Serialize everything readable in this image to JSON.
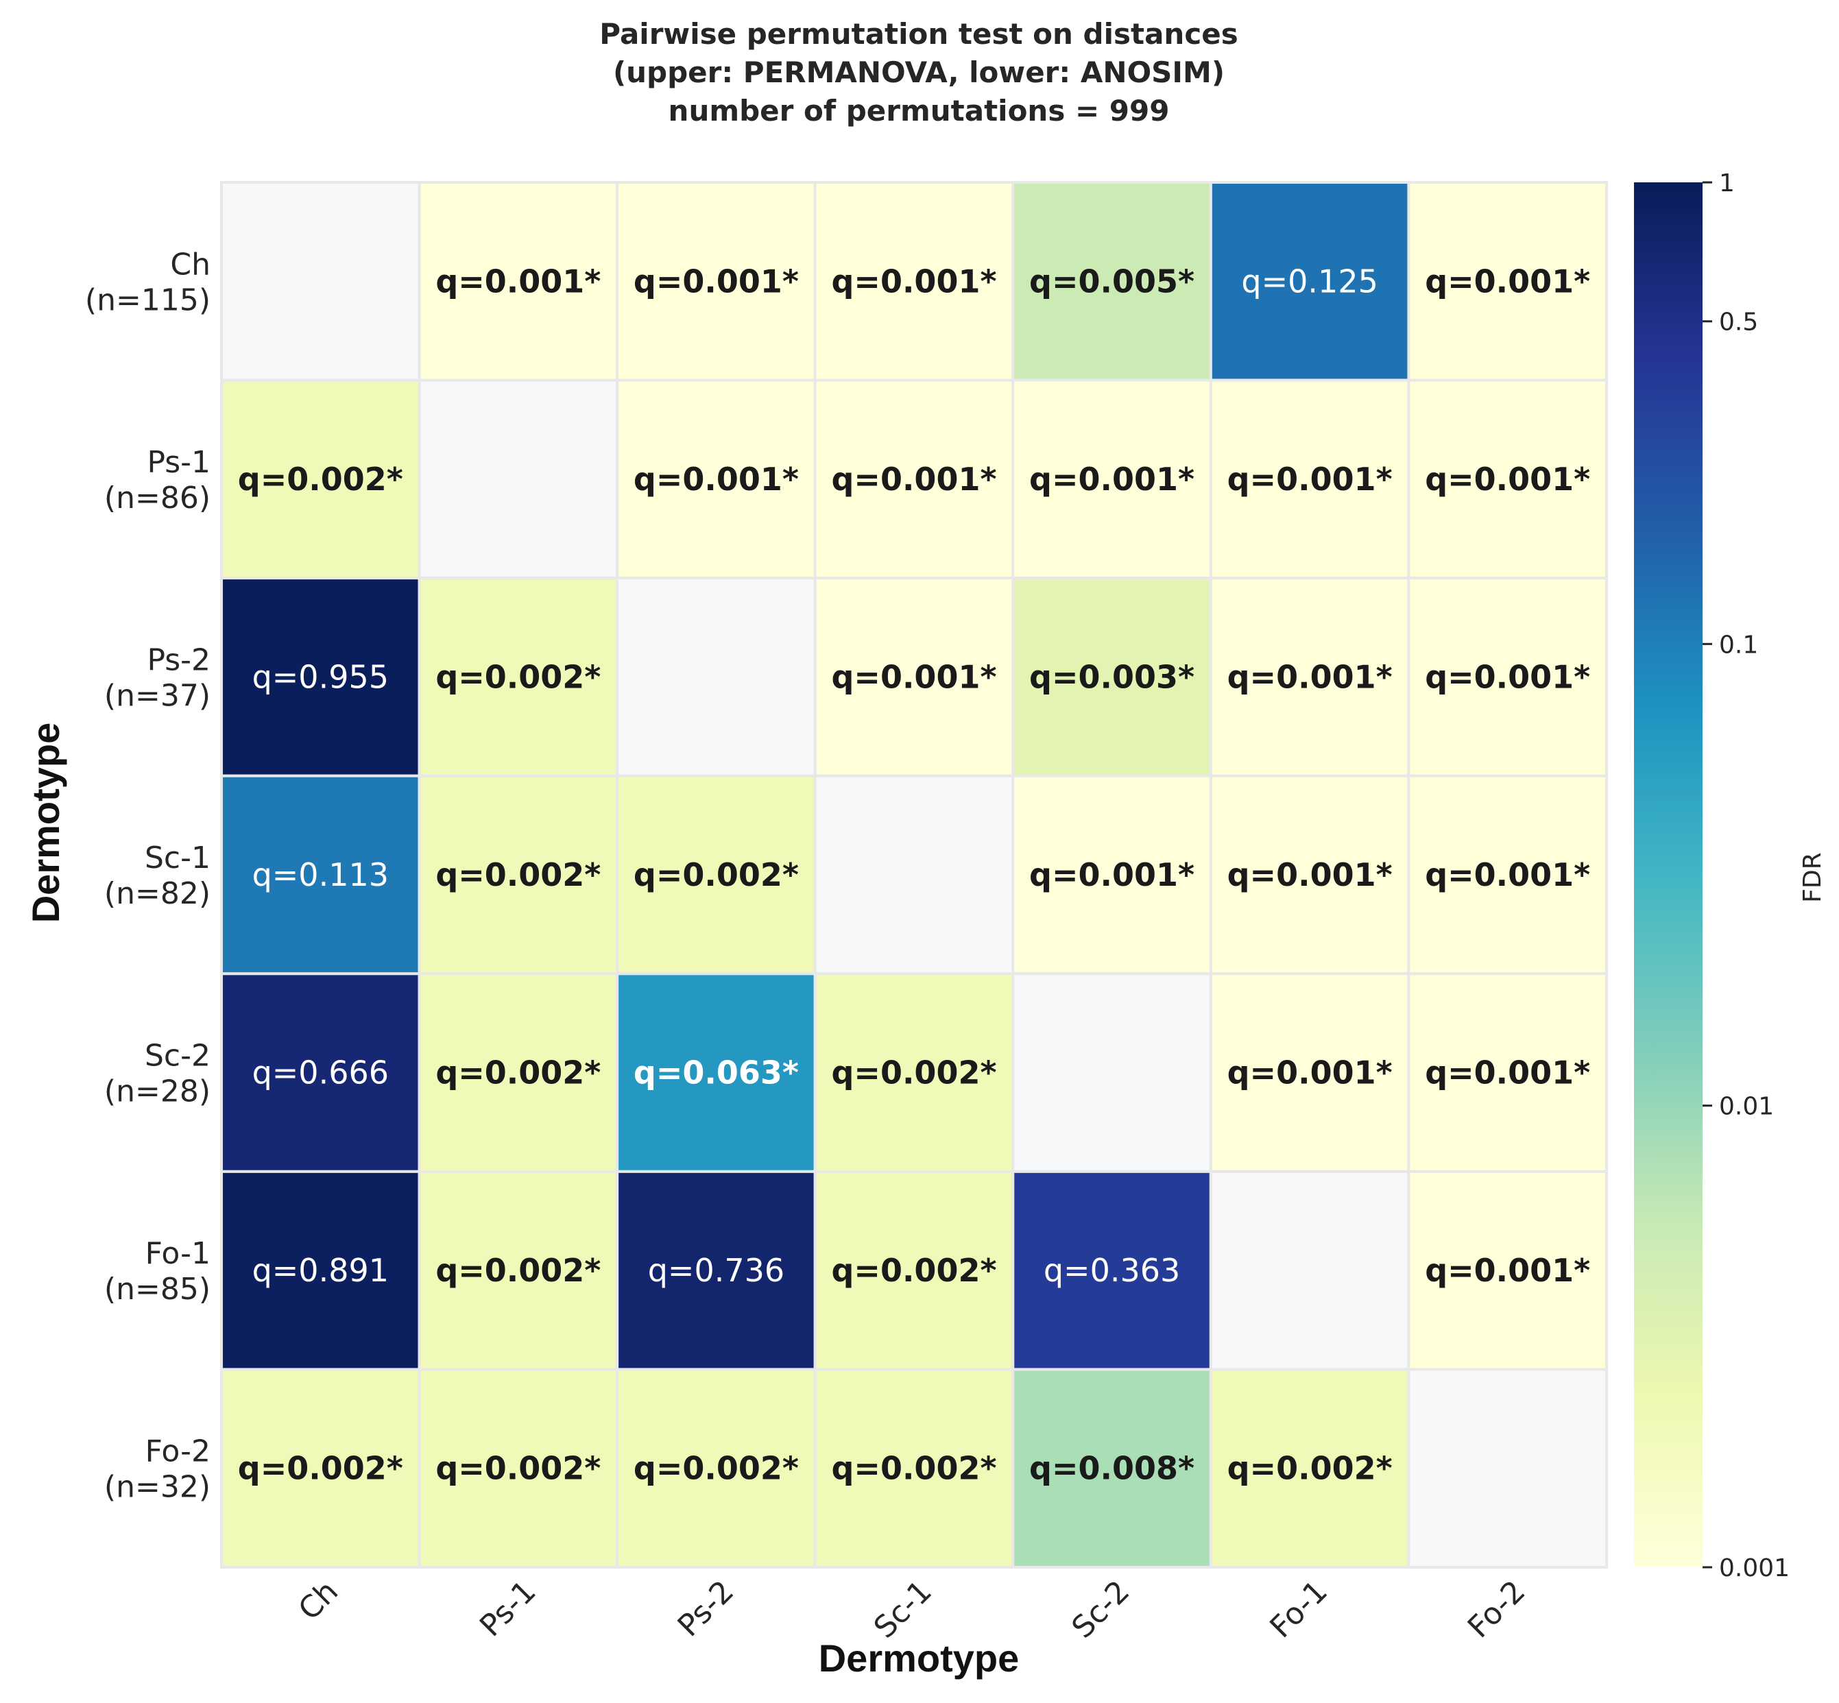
{
  "chart_data": {
    "type": "heatmap",
    "title_lines": [
      "Pairwise permutation test on distances",
      "(upper: PERMANOVA, lower: ANOSIM)",
      "number of permutations = 999"
    ],
    "xlabel": "Dermotype",
    "ylabel": "Dermotype",
    "x_categories": [
      "Ch",
      "Ps-1",
      "Ps-2",
      "Sc-1",
      "Sc-2",
      "Fo-1",
      "Fo-2"
    ],
    "y_categories": [
      [
        "Ch",
        "(n=115)"
      ],
      [
        "Ps-1",
        "(n=86)"
      ],
      [
        "Ps-2",
        "(n=37)"
      ],
      [
        "Sc-1",
        "(n=82)"
      ],
      [
        "Sc-2",
        "(n=28)"
      ],
      [
        "Fo-1",
        "(n=85)"
      ],
      [
        "Fo-2",
        "(n=32)"
      ]
    ],
    "values": [
      [
        null,
        0.001,
        0.001,
        0.001,
        0.005,
        0.125,
        0.001
      ],
      [
        0.002,
        null,
        0.001,
        0.001,
        0.001,
        0.001,
        0.001
      ],
      [
        0.955,
        0.002,
        null,
        0.001,
        0.003,
        0.001,
        0.001
      ],
      [
        0.113,
        0.002,
        0.002,
        null,
        0.001,
        0.001,
        0.001
      ],
      [
        0.666,
        0.002,
        0.063,
        0.002,
        null,
        0.001,
        0.001
      ],
      [
        0.891,
        0.002,
        0.736,
        0.002,
        0.363,
        null,
        0.001
      ],
      [
        0.002,
        0.002,
        0.002,
        0.002,
        0.008,
        0.002,
        null
      ]
    ],
    "labels": [
      [
        "",
        "q=0.001*",
        "q=0.001*",
        "q=0.001*",
        "q=0.005*",
        "q=0.125",
        "q=0.001*"
      ],
      [
        "q=0.002*",
        "",
        "q=0.001*",
        "q=0.001*",
        "q=0.001*",
        "q=0.001*",
        "q=0.001*"
      ],
      [
        "q=0.955",
        "q=0.002*",
        "",
        "q=0.001*",
        "q=0.003*",
        "q=0.001*",
        "q=0.001*"
      ],
      [
        "q=0.113",
        "q=0.002*",
        "q=0.002*",
        "",
        "q=0.001*",
        "q=0.001*",
        "q=0.001*"
      ],
      [
        "q=0.666",
        "q=0.002*",
        "q=0.063*",
        "q=0.002*",
        "",
        "q=0.001*",
        "q=0.001*"
      ],
      [
        "q=0.891",
        "q=0.002*",
        "q=0.736",
        "q=0.002*",
        "q=0.363",
        "",
        "q=0.001*"
      ],
      [
        "q=0.002*",
        "q=0.002*",
        "q=0.002*",
        "q=0.002*",
        "q=0.008*",
        "q=0.002*",
        ""
      ]
    ],
    "bold_marker": "*",
    "colorbar": {
      "label": "FDR",
      "scale": "log",
      "range": [
        0.001,
        1
      ],
      "ticks": [
        1,
        0.5,
        0.1,
        0.01,
        0.001
      ],
      "tick_labels": [
        "1",
        "0.5",
        "0.1",
        "0.01",
        "0.001"
      ],
      "colormap": "YlGnBu",
      "colormap_stops": [
        "#ffffd9",
        "#edf8b1",
        "#c7e9b4",
        "#7fcdbb",
        "#41b6c4",
        "#1d91c0",
        "#225ea8",
        "#253494",
        "#081d58"
      ]
    },
    "diagonal_color": "#f7f8fa",
    "grid_line_color": "#e8e8e8",
    "dark_text_color": "#1a1a1a",
    "light_text_color": "#ffffff"
  }
}
